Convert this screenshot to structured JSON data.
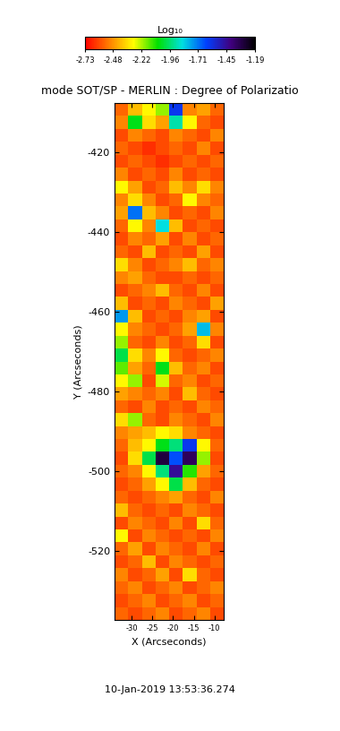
{
  "chart_data": {
    "type": "heatmap",
    "title": "mode SOT/SP - MERLIN : Degree of Polarizatio",
    "x_label": "X (Arcseconds)",
    "y_label": "Y (Arcseconds)",
    "annotations": [
      "10-Jan-2019 13:53:36.274"
    ],
    "xlim": [
      -34.1,
      -7.8
    ],
    "ylim": [
      -537.3,
      -407.6
    ],
    "xticks": [
      -30,
      -25,
      -20,
      -15,
      -10
    ],
    "yticks": [
      -520,
      -500,
      -480,
      -460,
      -440,
      -420
    ],
    "colorbar_label": "Log₁₀",
    "colorbar_range": [
      -2.73,
      -1.19
    ],
    "colorbar_ticks": [
      -2.73,
      -2.48,
      -2.22,
      -1.96,
      -1.71,
      -1.45,
      -1.19
    ],
    "cells": [
      [
        -2.55,
        -2.4,
        -2.3,
        -2.2,
        -1.6,
        -2.5,
        -2.45,
        -2.55
      ],
      [
        -2.5,
        -2.05,
        -2.35,
        -2.45,
        -1.9,
        -2.3,
        -2.55,
        -2.6
      ],
      [
        -2.6,
        -2.5,
        -2.55,
        -2.6,
        -2.5,
        -2.55,
        -2.6,
        -2.5
      ],
      [
        -2.55,
        -2.6,
        -2.65,
        -2.6,
        -2.55,
        -2.6,
        -2.5,
        -2.6
      ],
      [
        -2.6,
        -2.55,
        -2.6,
        -2.65,
        -2.6,
        -2.55,
        -2.6,
        -2.55
      ],
      [
        -2.5,
        -2.6,
        -2.55,
        -2.6,
        -2.5,
        -2.6,
        -2.55,
        -2.6
      ],
      [
        -2.3,
        -2.45,
        -2.6,
        -2.55,
        -2.4,
        -2.5,
        -2.35,
        -2.5
      ],
      [
        -2.5,
        -2.35,
        -2.5,
        -2.6,
        -2.55,
        -2.3,
        -2.5,
        -2.55
      ],
      [
        -2.45,
        -1.7,
        -2.4,
        -2.5,
        -2.6,
        -2.55,
        -2.6,
        -2.5
      ],
      [
        -2.55,
        -2.3,
        -2.5,
        -1.85,
        -2.4,
        -2.6,
        -2.55,
        -2.6
      ],
      [
        -2.6,
        -2.5,
        -2.55,
        -2.45,
        -2.6,
        -2.5,
        -2.6,
        -2.55
      ],
      [
        -2.55,
        -2.6,
        -2.4,
        -2.6,
        -2.55,
        -2.6,
        -2.45,
        -2.6
      ],
      [
        -2.35,
        -2.5,
        -2.6,
        -2.55,
        -2.5,
        -2.4,
        -2.55,
        -2.5
      ],
      [
        -2.5,
        -2.45,
        -2.55,
        -2.6,
        -2.6,
        -2.55,
        -2.6,
        -2.55
      ],
      [
        -2.6,
        -2.55,
        -2.5,
        -2.4,
        -2.55,
        -2.6,
        -2.5,
        -2.6
      ],
      [
        -2.4,
        -2.6,
        -2.55,
        -2.6,
        -2.5,
        -2.55,
        -2.6,
        -2.45
      ],
      [
        -1.75,
        -2.4,
        -2.6,
        -2.55,
        -2.6,
        -2.5,
        -2.45,
        -2.6
      ],
      [
        -2.3,
        -2.5,
        -2.55,
        -2.6,
        -2.55,
        -2.45,
        -1.8,
        -2.5
      ],
      [
        -2.2,
        -2.55,
        -2.6,
        -2.5,
        -2.6,
        -2.55,
        -2.35,
        -2.6
      ],
      [
        -2.0,
        -2.35,
        -2.5,
        -2.3,
        -2.55,
        -2.6,
        -2.55,
        -2.5
      ],
      [
        -2.15,
        -2.45,
        -2.55,
        -2.05,
        -2.4,
        -2.55,
        -2.5,
        -2.6
      ],
      [
        -2.3,
        -2.2,
        -2.6,
        -2.25,
        -2.55,
        -2.5,
        -2.6,
        -2.55
      ],
      [
        -2.45,
        -2.5,
        -2.55,
        -2.5,
        -2.6,
        -2.4,
        -2.55,
        -2.6
      ],
      [
        -2.55,
        -2.6,
        -2.5,
        -2.6,
        -2.55,
        -2.6,
        -2.5,
        -2.55
      ],
      [
        -2.35,
        -2.2,
        -2.55,
        -2.6,
        -2.5,
        -2.55,
        -2.6,
        -2.5
      ],
      [
        -2.5,
        -2.45,
        -2.4,
        -2.3,
        -2.35,
        -2.5,
        -2.55,
        -2.6
      ],
      [
        -2.55,
        -2.4,
        -2.3,
        -2.05,
        -1.95,
        -1.6,
        -2.3,
        -2.55
      ],
      [
        -2.6,
        -2.35,
        -2.0,
        -1.3,
        -1.65,
        -1.35,
        -2.2,
        -2.6
      ],
      [
        -2.55,
        -2.5,
        -2.3,
        -1.95,
        -1.45,
        -2.1,
        -2.45,
        -2.55
      ],
      [
        -2.6,
        -2.55,
        -2.45,
        -2.3,
        -2.0,
        -2.4,
        -2.55,
        -2.6
      ],
      [
        -2.55,
        -2.6,
        -2.55,
        -2.5,
        -2.45,
        -2.55,
        -2.6,
        -2.5
      ],
      [
        -2.4,
        -2.55,
        -2.6,
        -2.55,
        -2.6,
        -2.5,
        -2.55,
        -2.6
      ],
      [
        -2.6,
        -2.5,
        -2.55,
        -2.6,
        -2.5,
        -2.6,
        -2.35,
        -2.55
      ],
      [
        -2.3,
        -2.6,
        -2.5,
        -2.55,
        -2.6,
        -2.55,
        -2.6,
        -2.5
      ],
      [
        -2.55,
        -2.45,
        -2.6,
        -2.5,
        -2.55,
        -2.6,
        -2.5,
        -2.6
      ],
      [
        -2.6,
        -2.55,
        -2.4,
        -2.6,
        -2.5,
        -2.55,
        -2.6,
        -2.55
      ],
      [
        -2.5,
        -2.6,
        -2.55,
        -2.45,
        -2.6,
        -2.35,
        -2.55,
        -2.6
      ],
      [
        -2.55,
        -2.5,
        -2.6,
        -2.55,
        -2.5,
        -2.6,
        -2.55,
        -2.5
      ],
      [
        -2.6,
        -2.55,
        -2.5,
        -2.6,
        -2.55,
        -2.5,
        -2.6,
        -2.55
      ],
      [
        -2.55,
        -2.6,
        -2.55,
        -2.5,
        -2.6,
        -2.55,
        -2.5,
        -2.6
      ]
    ]
  }
}
